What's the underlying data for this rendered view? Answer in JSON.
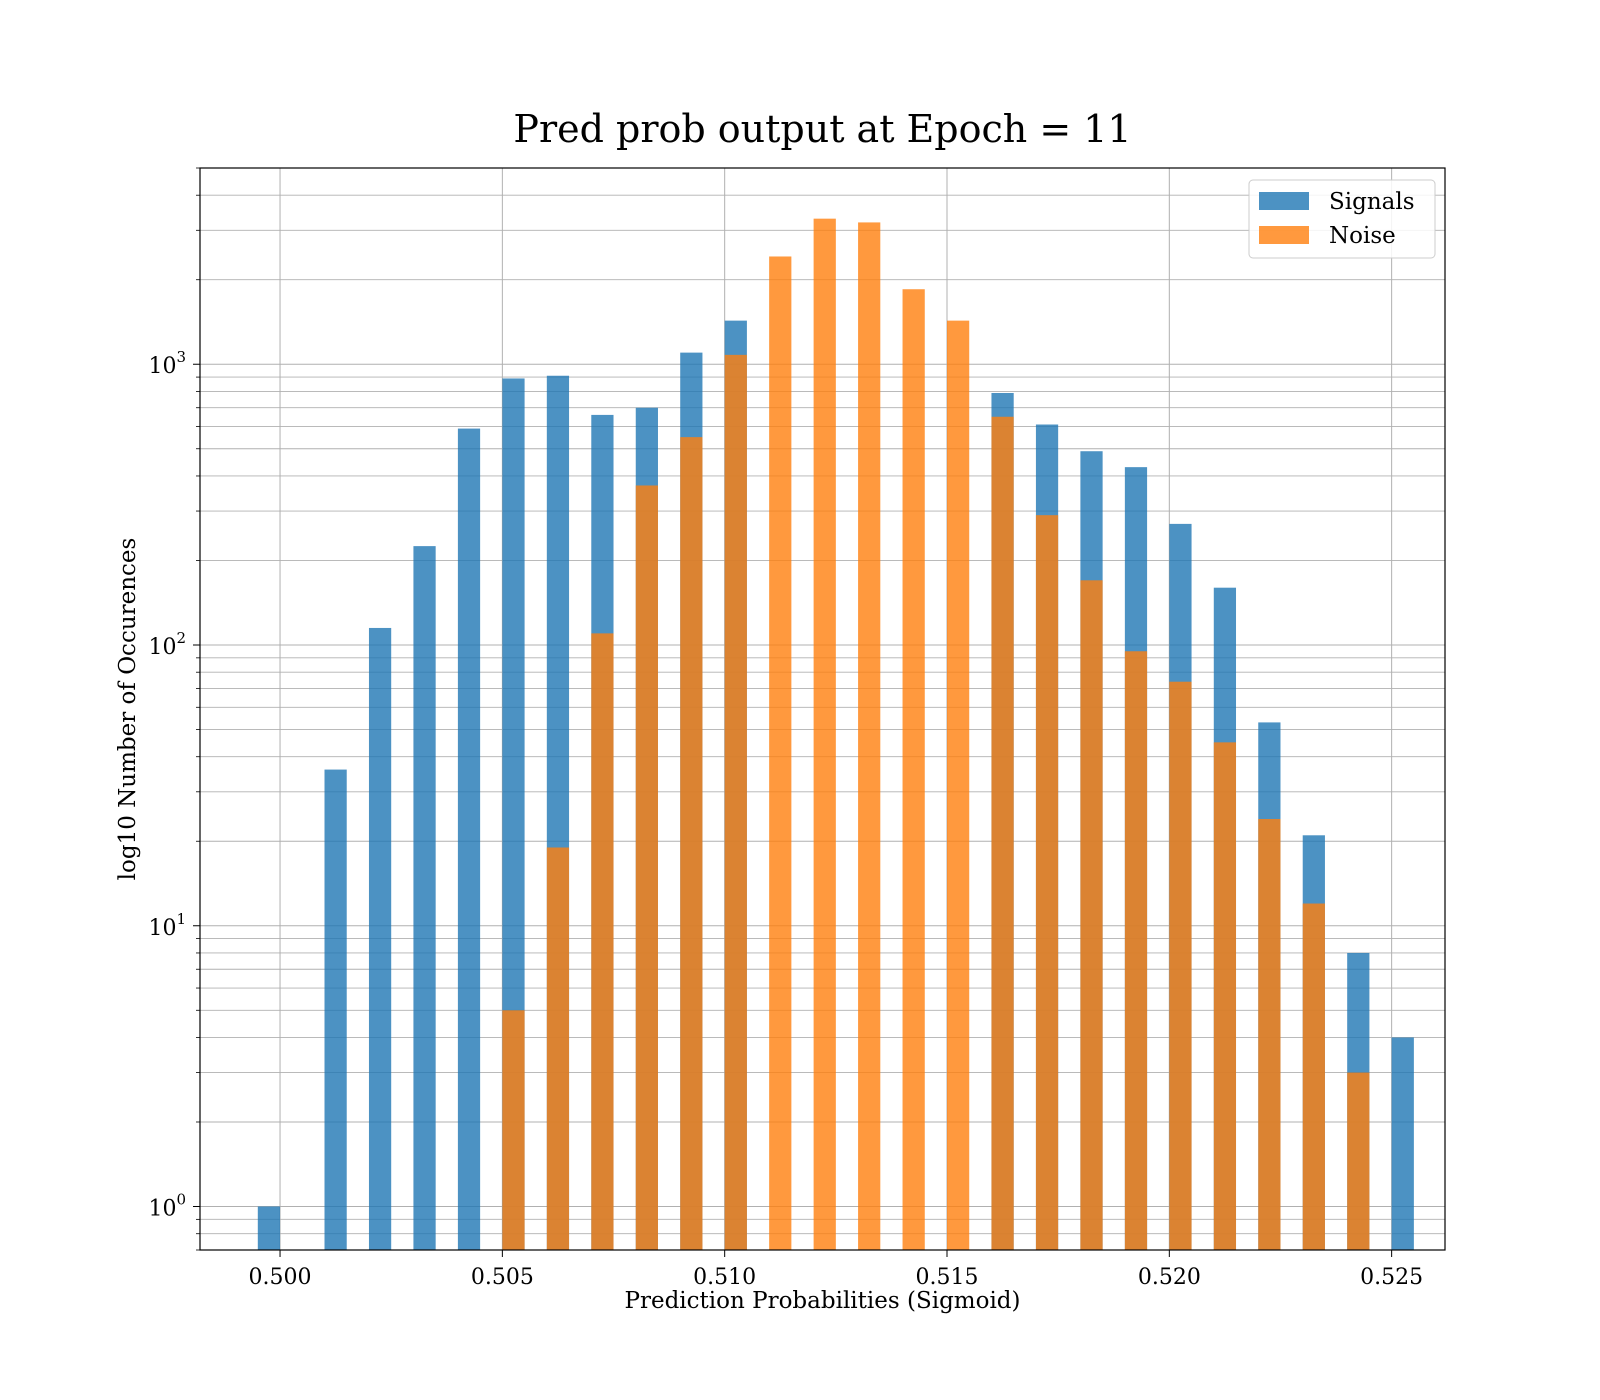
{
  "chart_data": {
    "type": "bar",
    "title": "Pred prob output at Epoch = 11",
    "xlabel": "Prediction Probabilities (Sigmoid)",
    "ylabel": "log10 Number of Occurences",
    "yscale": "log",
    "xlim": [
      0.4982,
      0.5262
    ],
    "ylim": [
      0.7,
      5000
    ],
    "x_ticks": [
      "0.500",
      "0.505",
      "0.510",
      "0.515",
      "0.520",
      "0.525"
    ],
    "x_tick_values": [
      0.5,
      0.505,
      0.51,
      0.515,
      0.52,
      0.525
    ],
    "y_tick_values": [
      1,
      10,
      100,
      1000
    ],
    "y_tick_bases": [
      "10",
      "10",
      "10",
      "10"
    ],
    "y_tick_exponents": [
      "0",
      "1",
      "2",
      "3"
    ],
    "grid": true,
    "legend_position": "top-right",
    "series": [
      {
        "name": "Signals",
        "color": "#1f77b4",
        "bins": [
          [
            0.4995,
            0.5
          ],
          [
            0.501,
            0.5015
          ],
          [
            0.502,
            0.5025
          ],
          [
            0.503,
            0.5035
          ],
          [
            0.504,
            0.5045
          ],
          [
            0.505,
            0.5055
          ],
          [
            0.506,
            0.5065
          ],
          [
            0.507,
            0.5075
          ],
          [
            0.508,
            0.5085
          ],
          [
            0.509,
            0.5095
          ],
          [
            0.51,
            0.5105
          ],
          [
            0.516,
            0.5165
          ],
          [
            0.517,
            0.5175
          ],
          [
            0.518,
            0.5185
          ],
          [
            0.519,
            0.5195
          ],
          [
            0.52,
            0.5205
          ],
          [
            0.521,
            0.5215
          ],
          [
            0.522,
            0.5225
          ],
          [
            0.523,
            0.5235
          ],
          [
            0.524,
            0.5245
          ],
          [
            0.525,
            0.5255
          ]
        ],
        "counts": [
          1,
          36,
          115,
          225,
          590,
          890,
          910,
          660,
          700,
          1100,
          1430,
          790,
          610,
          490,
          430,
          270,
          160,
          53,
          21,
          8,
          4
        ]
      },
      {
        "name": "Noise",
        "color": "#ff7f0e",
        "bins": [
          [
            0.505,
            0.5055
          ],
          [
            0.506,
            0.5065
          ],
          [
            0.507,
            0.5075
          ],
          [
            0.508,
            0.5085
          ],
          [
            0.509,
            0.5095
          ],
          [
            0.51,
            0.5105
          ],
          [
            0.511,
            0.5115
          ],
          [
            0.512,
            0.5125
          ],
          [
            0.513,
            0.5135
          ],
          [
            0.514,
            0.5145
          ],
          [
            0.515,
            0.5155
          ],
          [
            0.516,
            0.5165
          ],
          [
            0.517,
            0.5175
          ],
          [
            0.518,
            0.5185
          ],
          [
            0.519,
            0.5195
          ],
          [
            0.52,
            0.5205
          ],
          [
            0.521,
            0.5215
          ],
          [
            0.522,
            0.5225
          ],
          [
            0.523,
            0.5235
          ],
          [
            0.524,
            0.5245
          ]
        ],
        "counts": [
          5,
          19,
          110,
          370,
          550,
          1080,
          2420,
          3300,
          3200,
          1850,
          1430,
          650,
          290,
          170,
          95,
          74,
          45,
          24,
          12,
          3
        ]
      }
    ]
  }
}
